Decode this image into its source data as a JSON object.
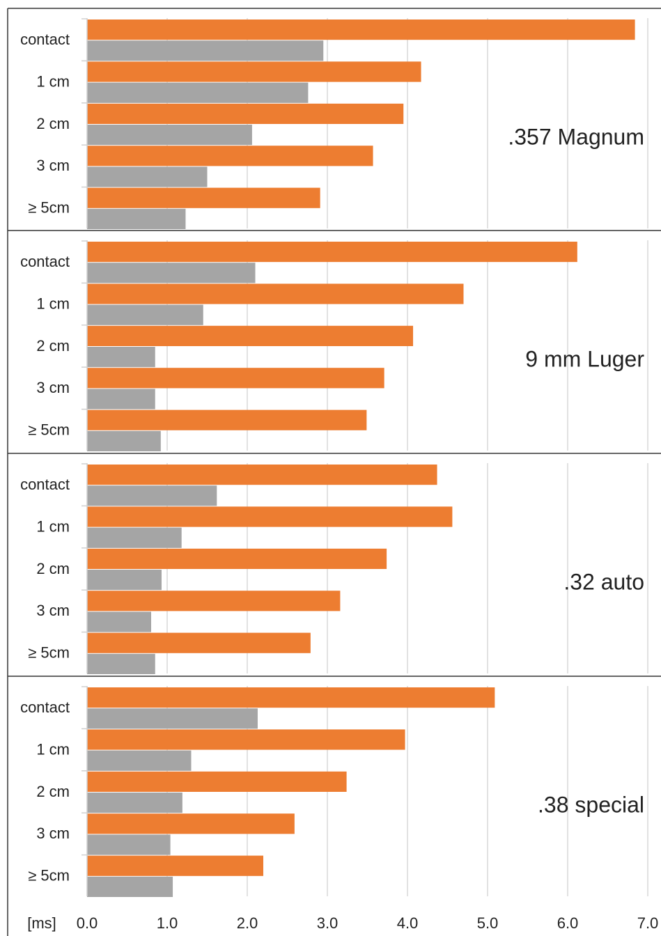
{
  "x_axis": {
    "label": "[ms]",
    "xlim": [
      0,
      7
    ],
    "xticks": [
      {
        "value": 0,
        "label": "0.0"
      },
      {
        "value": 1,
        "label": "1.0"
      },
      {
        "value": 2,
        "label": "2.0"
      },
      {
        "value": 3,
        "label": "3.0"
      },
      {
        "value": 4,
        "label": "4.0"
      },
      {
        "value": 5,
        "label": "5.0"
      },
      {
        "value": 6,
        "label": "6.0"
      },
      {
        "value": 7,
        "label": "7.0"
      }
    ]
  },
  "chart_data": [
    {
      "type": "bar",
      "orientation": "horizontal",
      "title": ".357 Magnum",
      "categories": [
        "contact",
        "1 cm",
        "2 cm",
        "3 cm",
        "≥ 5cm"
      ],
      "series": [
        {
          "color": "#ed7d31",
          "values": [
            6.84,
            4.17,
            3.95,
            3.57,
            2.91
          ]
        },
        {
          "color": "#a5a5a5",
          "values": [
            2.95,
            2.76,
            2.06,
            1.5,
            1.23
          ]
        }
      ]
    },
    {
      "type": "bar",
      "orientation": "horizontal",
      "title": "9 mm Luger",
      "categories": [
        "contact",
        "1 cm",
        "2 cm",
        "3 cm",
        "≥ 5cm"
      ],
      "series": [
        {
          "color": "#ed7d31",
          "values": [
            6.12,
            4.7,
            4.07,
            3.71,
            3.49
          ]
        },
        {
          "color": "#a5a5a5",
          "values": [
            2.1,
            1.45,
            0.85,
            0.85,
            0.92
          ]
        }
      ]
    },
    {
      "type": "bar",
      "orientation": "horizontal",
      "title": ".32 auto",
      "categories": [
        "contact",
        "1 cm",
        "2 cm",
        "3 cm",
        "≥ 5cm"
      ],
      "series": [
        {
          "color": "#ed7d31",
          "values": [
            4.37,
            4.56,
            3.74,
            3.16,
            2.79
          ]
        },
        {
          "color": "#a5a5a5",
          "values": [
            1.62,
            1.18,
            0.93,
            0.8,
            0.85
          ]
        }
      ]
    },
    {
      "type": "bar",
      "orientation": "horizontal",
      "title": ".38 special",
      "categories": [
        "contact",
        "1 cm",
        "2 cm",
        "3 cm",
        "≥ 5cm"
      ],
      "series": [
        {
          "color": "#ed7d31",
          "values": [
            5.09,
            3.97,
            3.24,
            2.59,
            2.2
          ]
        },
        {
          "color": "#a5a5a5",
          "values": [
            2.13,
            1.3,
            1.19,
            1.04,
            1.07
          ]
        }
      ]
    }
  ]
}
